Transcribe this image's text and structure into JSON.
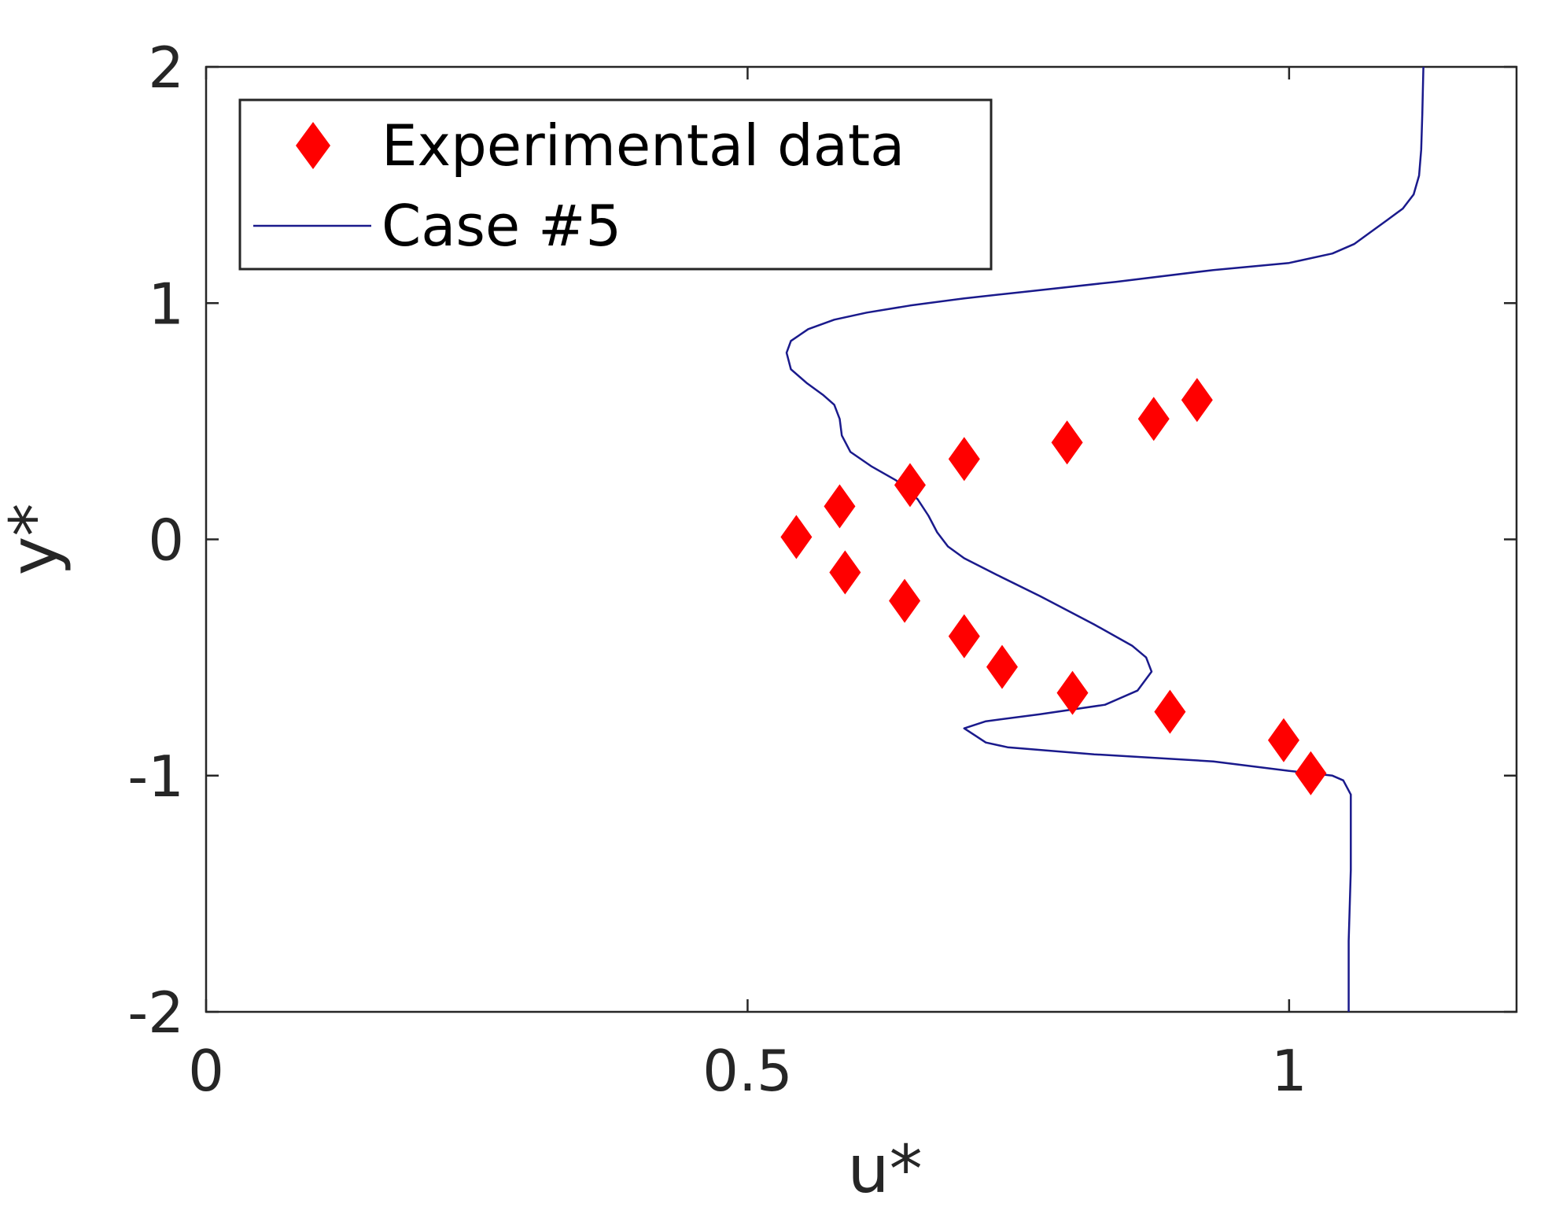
{
  "chart_data": {
    "type": "scatter",
    "xlabel": "u*",
    "ylabel": "y*",
    "xlim": [
      0,
      1.21
    ],
    "ylim": [
      -2,
      2
    ],
    "xticks": [
      {
        "value": 0,
        "label": "0"
      },
      {
        "value": 0.5,
        "label": "0.5"
      },
      {
        "value": 1,
        "label": "1"
      }
    ],
    "yticks": [
      {
        "value": 2,
        "label": "2"
      },
      {
        "value": 1,
        "label": "1"
      },
      {
        "value": 0,
        "label": "0"
      },
      {
        "value": -1,
        "label": "-1"
      },
      {
        "value": -2,
        "label": "-2"
      }
    ],
    "grid": false,
    "legend_position": "top-left",
    "series": [
      {
        "name": "Experimental data",
        "kind": "markers",
        "marker": "diamond",
        "color": "#ff0000",
        "points": [
          [
            0.545,
            0.01
          ],
          [
            0.585,
            0.14
          ],
          [
            0.59,
            -0.14
          ],
          [
            0.65,
            0.23
          ],
          [
            0.645,
            -0.26
          ],
          [
            0.7,
            0.34
          ],
          [
            0.7,
            -0.41
          ],
          [
            0.735,
            -0.54
          ],
          [
            0.795,
            0.41
          ],
          [
            0.8,
            -0.65
          ],
          [
            0.875,
            0.51
          ],
          [
            0.89,
            -0.73
          ],
          [
            0.915,
            0.59
          ],
          [
            0.995,
            -0.85
          ],
          [
            1.02,
            -0.99
          ]
        ]
      },
      {
        "name": "Case #5",
        "kind": "line",
        "color": "#1a1a8c",
        "points": [
          [
            1.055,
            -2.0
          ],
          [
            1.055,
            -1.7
          ],
          [
            1.057,
            -1.4
          ],
          [
            1.057,
            -1.2
          ],
          [
            1.057,
            -1.08
          ],
          [
            1.05,
            -1.02
          ],
          [
            1.04,
            -1.0
          ],
          [
            1.0,
            -0.98
          ],
          [
            0.93,
            -0.94
          ],
          [
            0.82,
            -0.91
          ],
          [
            0.74,
            -0.88
          ],
          [
            0.72,
            -0.86
          ],
          [
            0.71,
            -0.83
          ],
          [
            0.7,
            -0.8
          ],
          [
            0.72,
            -0.77
          ],
          [
            0.77,
            -0.74
          ],
          [
            0.83,
            -0.7
          ],
          [
            0.86,
            -0.64
          ],
          [
            0.873,
            -0.56
          ],
          [
            0.868,
            -0.5
          ],
          [
            0.855,
            -0.45
          ],
          [
            0.82,
            -0.36
          ],
          [
            0.77,
            -0.24
          ],
          [
            0.73,
            -0.15
          ],
          [
            0.7,
            -0.08
          ],
          [
            0.685,
            -0.03
          ],
          [
            0.675,
            0.03
          ],
          [
            0.667,
            0.1
          ],
          [
            0.657,
            0.17
          ],
          [
            0.637,
            0.25
          ],
          [
            0.614,
            0.31
          ],
          [
            0.595,
            0.37
          ],
          [
            0.587,
            0.44
          ],
          [
            0.585,
            0.51
          ],
          [
            0.58,
            0.57
          ],
          [
            0.57,
            0.61
          ],
          [
            0.555,
            0.66
          ],
          [
            0.54,
            0.72
          ],
          [
            0.536,
            0.79
          ],
          [
            0.54,
            0.84
          ],
          [
            0.556,
            0.89
          ],
          [
            0.58,
            0.93
          ],
          [
            0.61,
            0.96
          ],
          [
            0.65,
            0.99
          ],
          [
            0.7,
            1.02
          ],
          [
            0.76,
            1.05
          ],
          [
            0.84,
            1.09
          ],
          [
            0.93,
            1.14
          ],
          [
            1.0,
            1.17
          ],
          [
            1.04,
            1.21
          ],
          [
            1.06,
            1.25
          ],
          [
            1.075,
            1.3
          ],
          [
            1.09,
            1.35
          ],
          [
            1.105,
            1.4
          ],
          [
            1.115,
            1.46
          ],
          [
            1.12,
            1.54
          ],
          [
            1.122,
            1.65
          ],
          [
            1.123,
            1.8
          ],
          [
            1.124,
            2.0
          ]
        ]
      }
    ]
  }
}
